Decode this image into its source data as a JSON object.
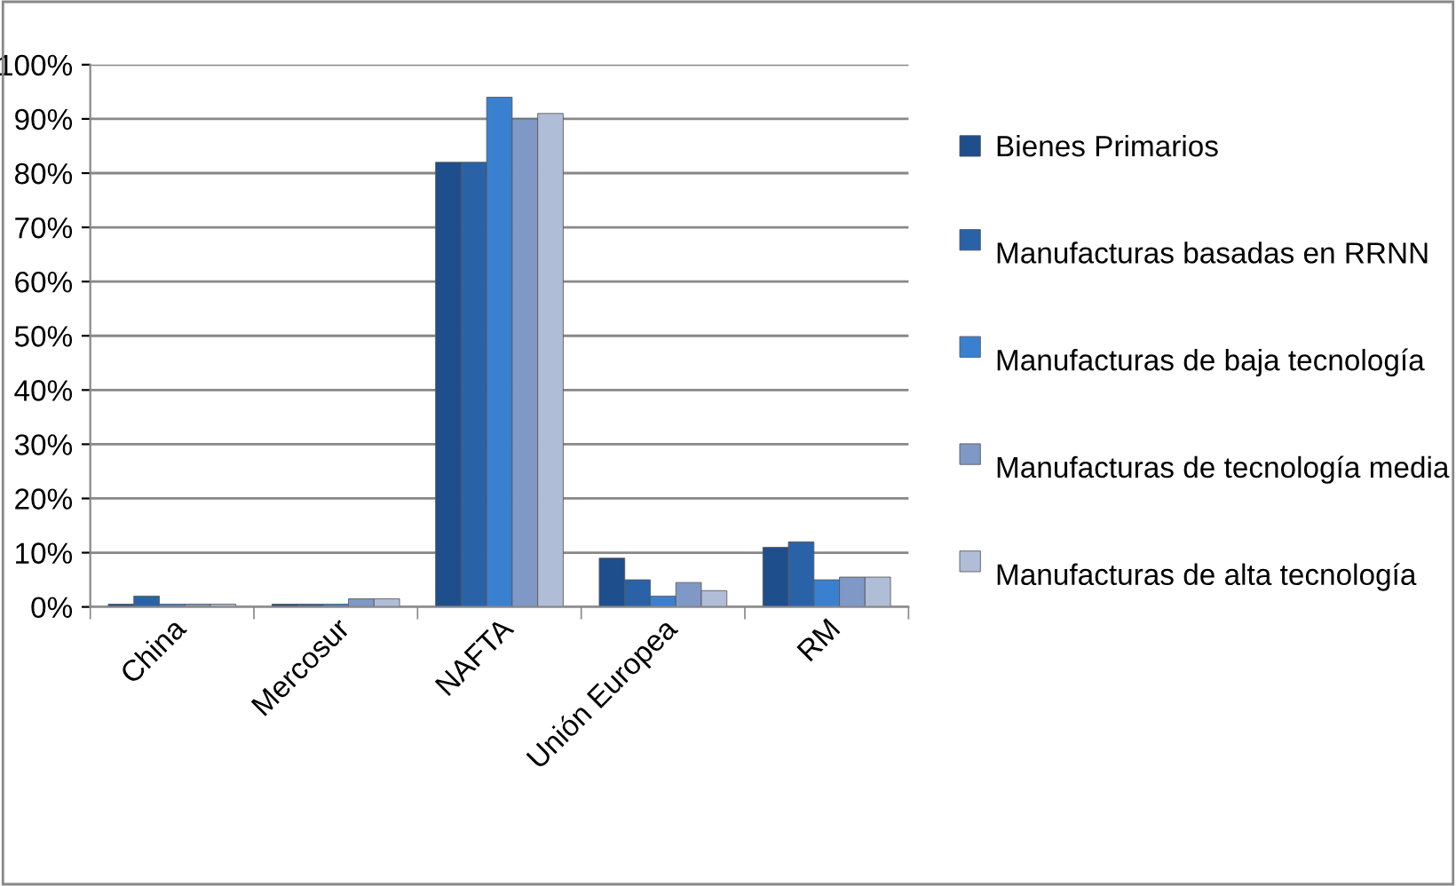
{
  "chart_data": {
    "type": "bar",
    "categories": [
      "China",
      "Mercosur",
      "NAFTA",
      "Unión Europea",
      "RM"
    ],
    "series": [
      {
        "name": "Bienes Primarios",
        "color": "#1f4e8c",
        "values": [
          0.5,
          0.5,
          82,
          9,
          11
        ]
      },
      {
        "name": "Manufacturas basadas en RRNN",
        "color": "#2a62a8",
        "values": [
          2,
          0.5,
          82,
          5,
          12
        ]
      },
      {
        "name": "Manufacturas de baja tecnología",
        "color": "#3a80d0",
        "values": [
          0.5,
          0.5,
          94,
          2,
          5
        ]
      },
      {
        "name": "Manufacturas de tecnología media",
        "color": "#7f98c6",
        "values": [
          0.5,
          1.5,
          90,
          4.5,
          5.5
        ]
      },
      {
        "name": "Manufacturas de alta tecnología",
        "color": "#b0bdd6",
        "values": [
          0.5,
          1.5,
          91,
          3,
          5.5
        ]
      }
    ],
    "ylim": [
      0,
      100
    ],
    "yticks": [
      {
        "value": 0,
        "label": "0%"
      },
      {
        "value": 10,
        "label": "10%"
      },
      {
        "value": 20,
        "label": "20%"
      },
      {
        "value": 30,
        "label": "30%"
      },
      {
        "value": 40,
        "label": "40%"
      },
      {
        "value": 50,
        "label": "50%"
      },
      {
        "value": 60,
        "label": "60%"
      },
      {
        "value": 70,
        "label": "70%"
      },
      {
        "value": 80,
        "label": "80%"
      },
      {
        "value": 90,
        "label": "90%"
      },
      {
        "value": 100,
        "label": "100%"
      }
    ],
    "grid": "y",
    "legend": "right"
  }
}
